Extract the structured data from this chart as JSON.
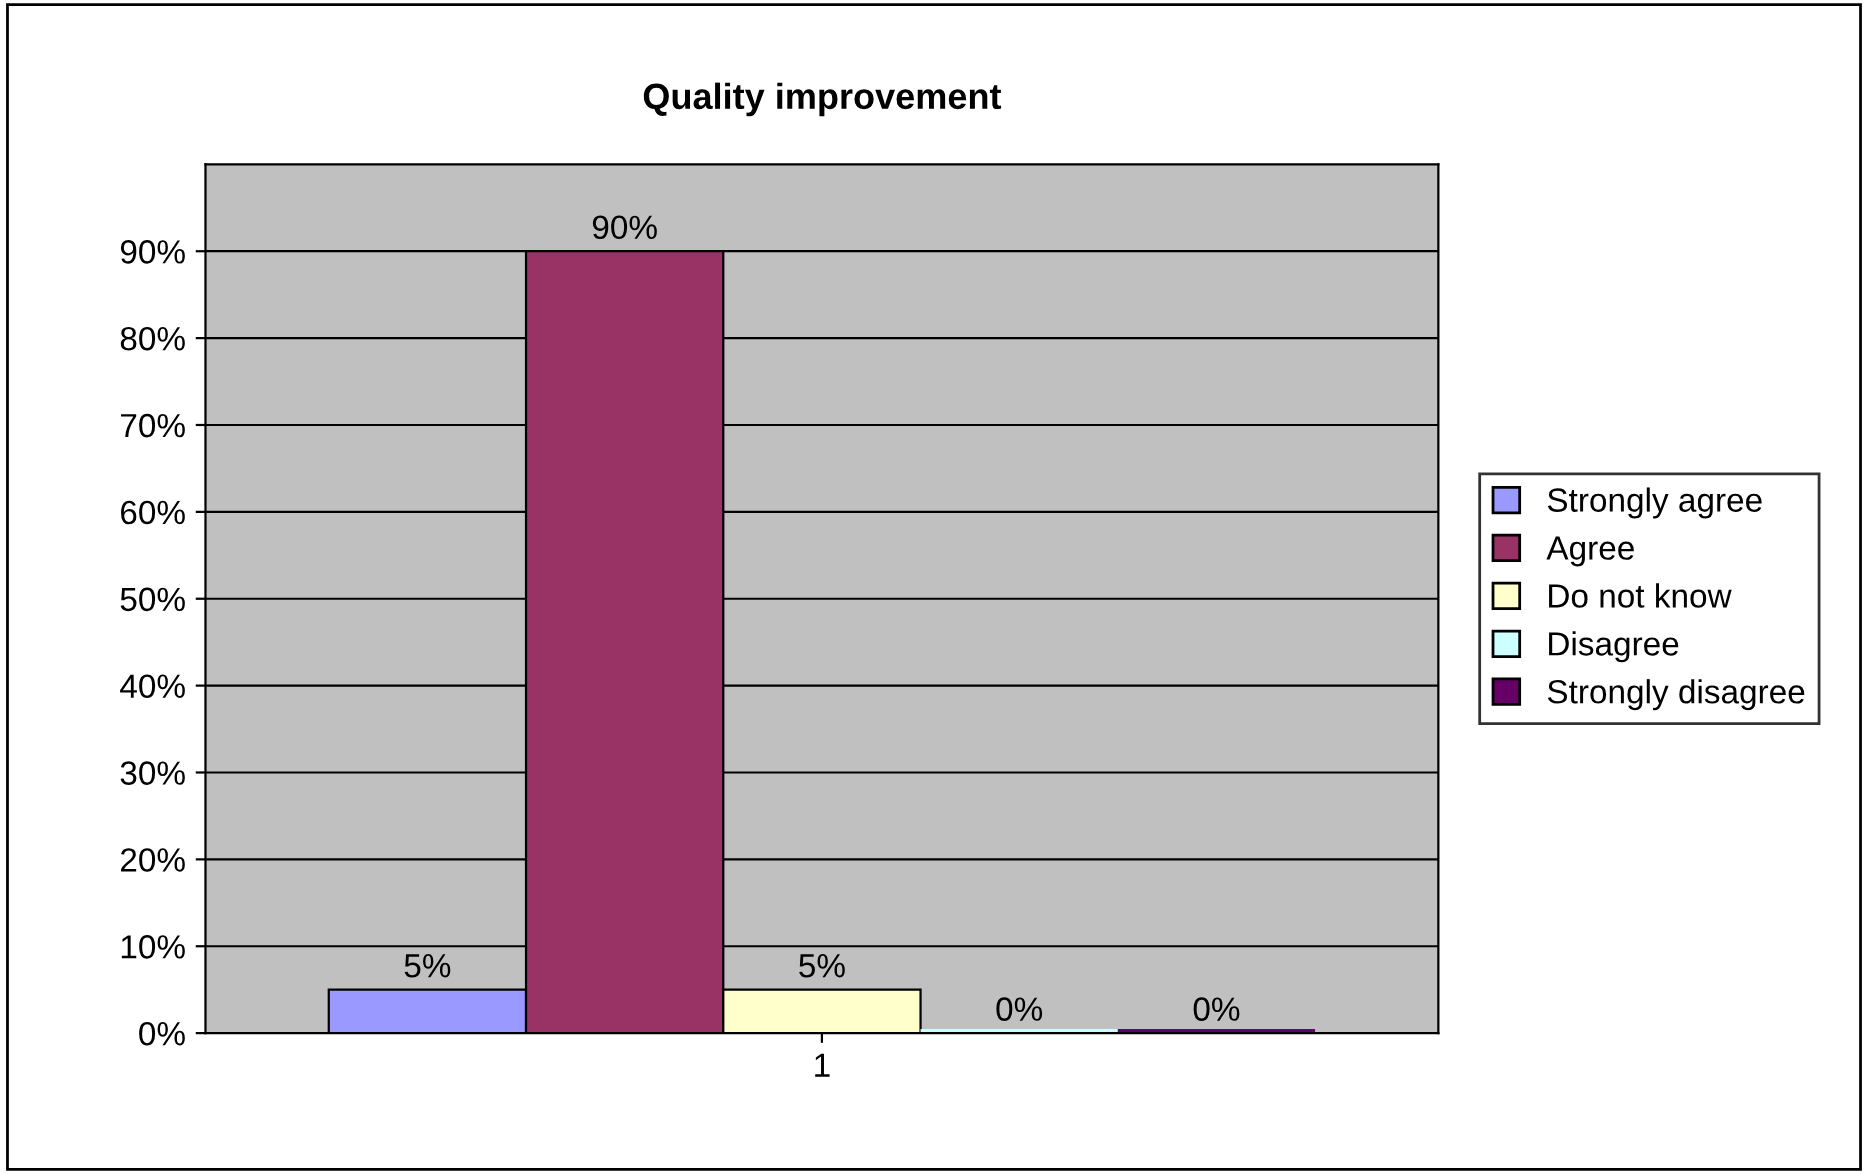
{
  "chart_data": {
    "type": "bar",
    "title": "Quality improvement",
    "categories": [
      "1"
    ],
    "series": [
      {
        "name": "Strongly agree",
        "color": "#9999ff",
        "values": [
          5
        ],
        "value_labels": [
          "5%"
        ]
      },
      {
        "name": "Agree",
        "color": "#993366",
        "values": [
          90
        ],
        "value_labels": [
          "90%"
        ]
      },
      {
        "name": "Do not know",
        "color": "#ffffcc",
        "values": [
          5
        ],
        "value_labels": [
          "5%"
        ]
      },
      {
        "name": "Disagree",
        "color": "#ccffff",
        "values": [
          0
        ],
        "value_labels": [
          "0%"
        ]
      },
      {
        "name": "Strongly disagree",
        "color": "#660066",
        "values": [
          0
        ],
        "value_labels": [
          "0%"
        ]
      }
    ],
    "ylim": [
      0,
      100
    ],
    "yticks": [
      {
        "value": 0,
        "label": "0%"
      },
      {
        "value": 10,
        "label": "10%"
      },
      {
        "value": 20,
        "label": "20%"
      },
      {
        "value": 30,
        "label": "30%"
      },
      {
        "value": 40,
        "label": "40%"
      },
      {
        "value": 50,
        "label": "50%"
      },
      {
        "value": 60,
        "label": "60%"
      },
      {
        "value": 70,
        "label": "70%"
      },
      {
        "value": 80,
        "label": "80%"
      },
      {
        "value": 90,
        "label": "90%"
      }
    ],
    "grid": "y",
    "legend": "right"
  }
}
